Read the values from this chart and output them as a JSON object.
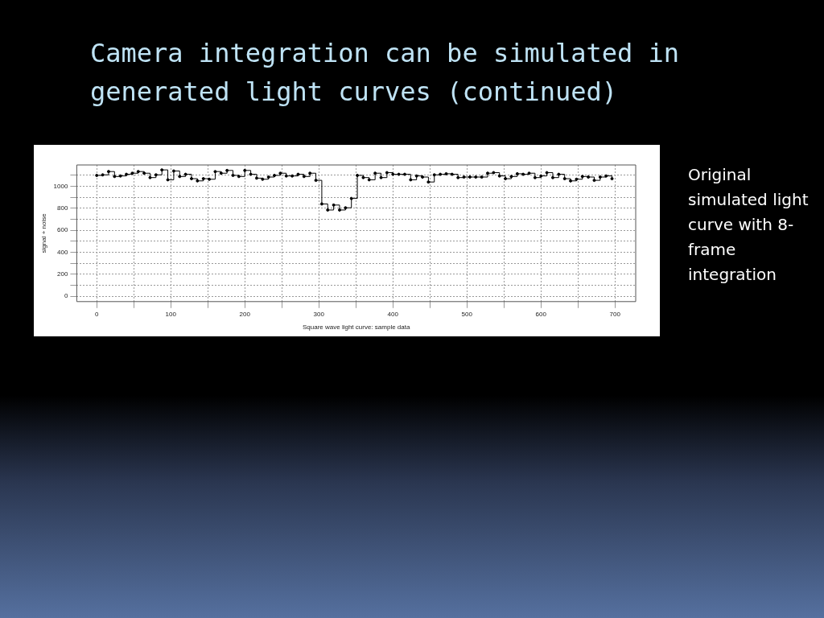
{
  "chart_data": {
    "type": "step",
    "title": "Camera integration can be simulated in generated light curves (continued)",
    "xlabel": "Square wave light curve: sample data",
    "ylabel": "signal + noise",
    "annotations": [
      "Original simulated light curve with 8-frame integration"
    ],
    "x": [
      0,
      8,
      16,
      24,
      32,
      40,
      48,
      56,
      64,
      72,
      80,
      88,
      96,
      104,
      112,
      120,
      128,
      136,
      144,
      152,
      160,
      168,
      176,
      184,
      192,
      200,
      208,
      216,
      224,
      232,
      240,
      248,
      256,
      264,
      272,
      280,
      288,
      296,
      304,
      312,
      320,
      328,
      336,
      344,
      352,
      360,
      368,
      376,
      384,
      392,
      400,
      408,
      416,
      424,
      432,
      440,
      448,
      456,
      464,
      472,
      480,
      488,
      496,
      504,
      512,
      520,
      528,
      536,
      544,
      552,
      560,
      568,
      576,
      584,
      592,
      600,
      608,
      616,
      624,
      632,
      640,
      648,
      656,
      664,
      672,
      680,
      688,
      696
    ],
    "series": [
      {
        "color": "#000000",
        "values": [
          1100,
          1105,
          1135,
          1090,
          1095,
          1110,
          1120,
          1135,
          1120,
          1080,
          1105,
          1150,
          1060,
          1140,
          1090,
          1110,
          1070,
          1050,
          1070,
          1065,
          1135,
          1120,
          1145,
          1100,
          1090,
          1145,
          1110,
          1075,
          1065,
          1085,
          1100,
          1120,
          1095,
          1095,
          1110,
          1090,
          1120,
          1055,
          840,
          785,
          830,
          785,
          805,
          890,
          1100,
          1080,
          1060,
          1120,
          1080,
          1125,
          1110,
          1110,
          1110,
          1060,
          1095,
          1085,
          1040,
          1105,
          1110,
          1115,
          1110,
          1080,
          1085,
          1085,
          1085,
          1085,
          1120,
          1125,
          1095,
          1070,
          1090,
          1115,
          1110,
          1120,
          1080,
          1095,
          1125,
          1080,
          1110,
          1070,
          1050,
          1065,
          1090,
          1085,
          1055,
          1085,
          1095,
          1070
        ]
      }
    ],
    "xlim": [
      -27,
      728
    ],
    "ylim": [
      -49,
      1195
    ],
    "xticks": [
      0,
      {
        "value": 50,
        "label": null
      },
      100,
      {
        "value": 150,
        "label": null
      },
      200,
      {
        "value": 250,
        "label": null
      },
      300,
      {
        "value": 350,
        "label": null
      },
      400,
      {
        "value": 450,
        "label": null
      },
      500,
      {
        "value": 550,
        "label": null
      },
      600,
      {
        "value": 650,
        "label": null
      },
      700
    ],
    "yticks": [
      0,
      {
        "value": 100,
        "label": null
      },
      200,
      {
        "value": 300,
        "label": null
      },
      400,
      {
        "value": 500,
        "label": null
      },
      600,
      {
        "value": 700,
        "label": null
      },
      800,
      {
        "value": 900,
        "label": null
      },
      1000,
      {
        "value": 1100,
        "label": null
      }
    ],
    "grid": true,
    "marker": "circle",
    "line_style": "solid"
  }
}
